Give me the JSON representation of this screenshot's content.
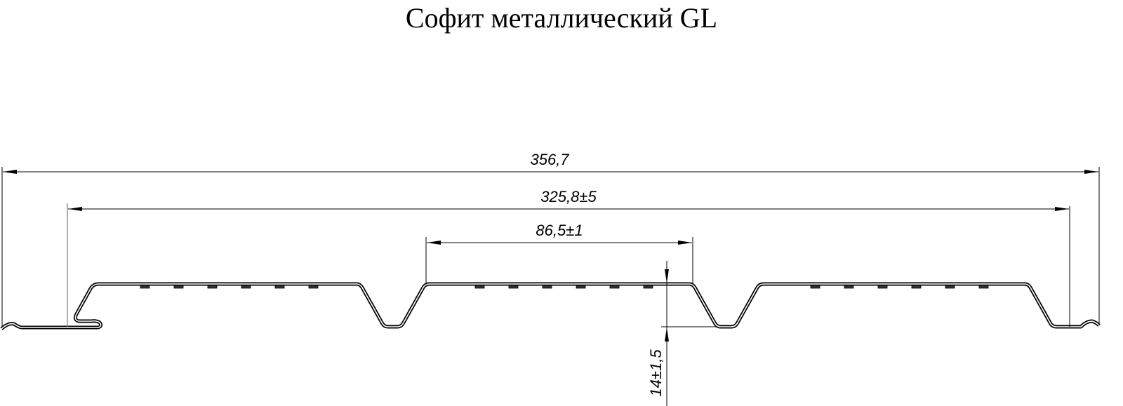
{
  "title": "Софит металлический GL",
  "dimensions": {
    "overall_width": "356,7",
    "working_width": "325,8±5",
    "rib_pitch": "86,5±1",
    "profile_height": "14±1,5"
  },
  "colors": {
    "line": "#000000",
    "extension_line": "#555555",
    "background": "#ffffff"
  }
}
